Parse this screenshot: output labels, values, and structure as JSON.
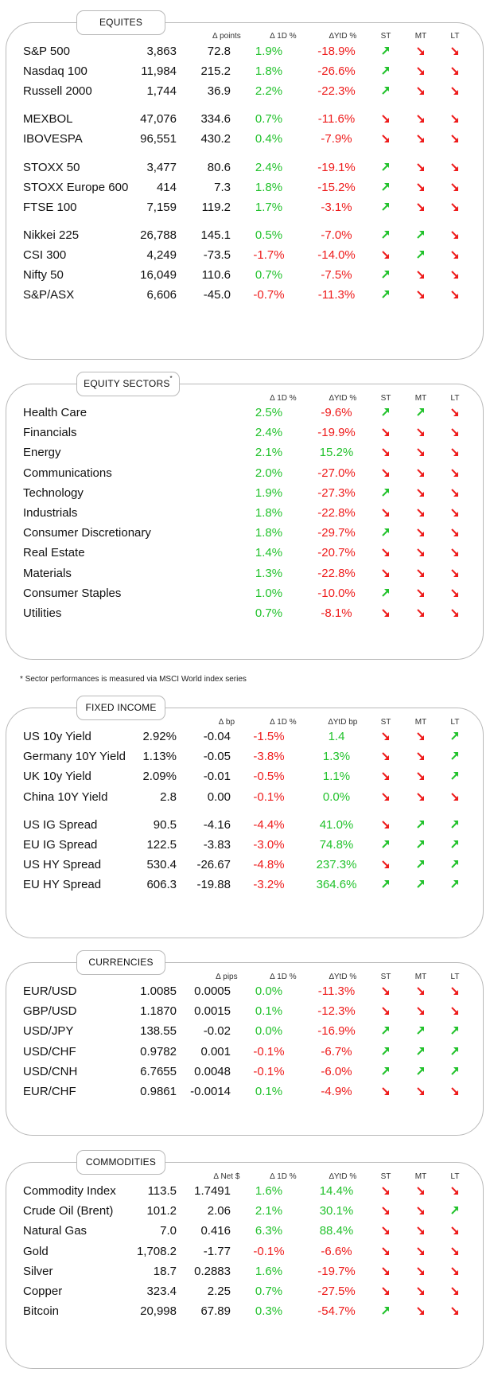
{
  "colors": {
    "positive": "#22c22c",
    "negative": "#ee1b1b",
    "border": "#b9b9b9"
  },
  "equities": {
    "title": "EQUITES",
    "headers": {
      "abs": "∆ points",
      "d1": "∆ 1D %",
      "ytd": "∆YtD %",
      "st": "ST",
      "mt": "MT",
      "lt": "LT"
    },
    "groups": [
      [
        {
          "name": "S&P 500",
          "value": "3,863",
          "abs": "72.8",
          "d1": "1.9%",
          "ytd": "-18.9%",
          "st": "up",
          "mt": "down",
          "lt": "down"
        },
        {
          "name": "Nasdaq 100",
          "value": "11,984",
          "abs": "215.2",
          "d1": "1.8%",
          "ytd": "-26.6%",
          "st": "up",
          "mt": "down",
          "lt": "down"
        },
        {
          "name": "Russell 2000",
          "value": "1,744",
          "abs": "36.9",
          "d1": "2.2%",
          "ytd": "-22.3%",
          "st": "up",
          "mt": "down",
          "lt": "down"
        }
      ],
      [
        {
          "name": "MEXBOL",
          "value": "47,076",
          "abs": "334.6",
          "d1": "0.7%",
          "ytd": "-11.6%",
          "st": "down",
          "mt": "down",
          "lt": "down"
        },
        {
          "name": "IBOVESPA",
          "value": "96,551",
          "abs": "430.2",
          "d1": "0.4%",
          "ytd": "-7.9%",
          "st": "down",
          "mt": "down",
          "lt": "down"
        }
      ],
      [
        {
          "name": "STOXX 50",
          "value": "3,477",
          "abs": "80.6",
          "d1": "2.4%",
          "ytd": "-19.1%",
          "st": "up",
          "mt": "down",
          "lt": "down"
        },
        {
          "name": "STOXX Europe 600",
          "value": "414",
          "abs": "7.3",
          "d1": "1.8%",
          "ytd": "-15.2%",
          "st": "up",
          "mt": "down",
          "lt": "down"
        },
        {
          "name": "FTSE 100",
          "value": "7,159",
          "abs": "119.2",
          "d1": "1.7%",
          "ytd": "-3.1%",
          "st": "up",
          "mt": "down",
          "lt": "down"
        }
      ],
      [
        {
          "name": "Nikkei 225",
          "value": "26,788",
          "abs": "145.1",
          "d1": "0.5%",
          "ytd": "-7.0%",
          "st": "up",
          "mt": "up",
          "lt": "down"
        },
        {
          "name": "CSI 300",
          "value": "4,249",
          "abs": "-73.5",
          "d1": "-1.7%",
          "ytd": "-14.0%",
          "st": "down",
          "mt": "up",
          "lt": "down"
        },
        {
          "name": "Nifty  50",
          "value": "16,049",
          "abs": "110.6",
          "d1": "0.7%",
          "ytd": "-7.5%",
          "st": "up",
          "mt": "down",
          "lt": "down"
        },
        {
          "name": "S&P/ASX",
          "value": "6,606",
          "abs": "-45.0",
          "d1": "-0.7%",
          "ytd": "-11.3%",
          "st": "up",
          "mt": "down",
          "lt": "down"
        }
      ]
    ]
  },
  "sectors": {
    "title": "EQUITY SECTORS",
    "title_mark": "*",
    "headers": {
      "d1": "∆ 1D %",
      "ytd": "∆YtD %",
      "st": "ST",
      "mt": "MT",
      "lt": "LT"
    },
    "rows": [
      {
        "name": "Health Care",
        "d1": "2.5%",
        "ytd": "-9.6%",
        "st": "up",
        "mt": "up",
        "lt": "down"
      },
      {
        "name": "Financials",
        "d1": "2.4%",
        "ytd": "-19.9%",
        "st": "down",
        "mt": "down",
        "lt": "down"
      },
      {
        "name": "Energy",
        "d1": "2.1%",
        "ytd": "15.2%",
        "st": "down",
        "mt": "down",
        "lt": "down"
      },
      {
        "name": "Communications",
        "d1": "2.0%",
        "ytd": "-27.0%",
        "st": "down",
        "mt": "down",
        "lt": "down"
      },
      {
        "name": "Technology",
        "d1": "1.9%",
        "ytd": "-27.3%",
        "st": "up",
        "mt": "down",
        "lt": "down"
      },
      {
        "name": "Industrials",
        "d1": "1.8%",
        "ytd": "-22.8%",
        "st": "down",
        "mt": "down",
        "lt": "down"
      },
      {
        "name": "Consumer Discretionary",
        "d1": "1.8%",
        "ytd": "-29.7%",
        "st": "up",
        "mt": "down",
        "lt": "down"
      },
      {
        "name": "Real Estate",
        "d1": "1.4%",
        "ytd": "-20.7%",
        "st": "down",
        "mt": "down",
        "lt": "down"
      },
      {
        "name": "Materials",
        "d1": "1.3%",
        "ytd": "-22.8%",
        "st": "down",
        "mt": "down",
        "lt": "down"
      },
      {
        "name": "Consumer Staples",
        "d1": "1.0%",
        "ytd": "-10.0%",
        "st": "up",
        "mt": "down",
        "lt": "down"
      },
      {
        "name": "Utilities",
        "d1": "0.7%",
        "ytd": "-8.1%",
        "st": "down",
        "mt": "down",
        "lt": "down"
      }
    ],
    "footnote": "* Sector performances is measured via MSCI World index series"
  },
  "fixed_income": {
    "title": "FIXED INCOME",
    "headers": {
      "abs": "∆ bp",
      "d1": "∆ 1D %",
      "ytd": "∆YtD bp",
      "st": "ST",
      "mt": "MT",
      "lt": "LT"
    },
    "groups": [
      [
        {
          "name": "US 10y Yield",
          "value": "2.92%",
          "abs": "-0.04",
          "d1": "-1.5%",
          "ytd": "1.4",
          "st": "down",
          "mt": "down",
          "lt": "up"
        },
        {
          "name": "Germany 10Y Yield",
          "value": "1.13%",
          "abs": "-0.05",
          "d1": "-3.8%",
          "ytd": "1.3%",
          "st": "down",
          "mt": "down",
          "lt": "up"
        },
        {
          "name": "UK 10y Yield",
          "value": "2.09%",
          "abs": "-0.01",
          "d1": "-0.5%",
          "ytd": "1.1%",
          "st": "down",
          "mt": "down",
          "lt": "up"
        },
        {
          "name": "China 10Y Yield",
          "value": "2.8",
          "abs": "0.00",
          "d1": "-0.1%",
          "ytd": "0.0%",
          "st": "down",
          "mt": "down",
          "lt": "down"
        }
      ],
      [
        {
          "name": "US IG Spread",
          "value": "90.5",
          "abs": "-4.16",
          "d1": "-4.4%",
          "ytd": "41.0%",
          "st": "down",
          "mt": "up",
          "lt": "up"
        },
        {
          "name": "EU IG Spread",
          "value": "122.5",
          "abs": "-3.83",
          "d1": "-3.0%",
          "ytd": "74.8%",
          "st": "up",
          "mt": "up",
          "lt": "up"
        },
        {
          "name": "US HY Spread",
          "value": "530.4",
          "abs": "-26.67",
          "d1": "-4.8%",
          "ytd": "237.3%",
          "st": "down",
          "mt": "up",
          "lt": "up"
        },
        {
          "name": "EU HY Spread",
          "value": "606.3",
          "abs": "-19.88",
          "d1": "-3.2%",
          "ytd": "364.6%",
          "st": "up",
          "mt": "up",
          "lt": "up"
        }
      ]
    ]
  },
  "currencies": {
    "title": "CURRENCIES",
    "headers": {
      "abs": "∆ pips",
      "d1": "∆ 1D %",
      "ytd": "∆YtD %",
      "st": "ST",
      "mt": "MT",
      "lt": "LT"
    },
    "rows": [
      {
        "name": "EUR/USD",
        "value": "1.0085",
        "abs": "0.0005",
        "d1": "0.0%",
        "ytd": "-11.3%",
        "st": "down",
        "mt": "down",
        "lt": "down"
      },
      {
        "name": "GBP/USD",
        "value": "1.1870",
        "abs": "0.0015",
        "d1": "0.1%",
        "ytd": "-12.3%",
        "st": "down",
        "mt": "down",
        "lt": "down"
      },
      {
        "name": "USD/JPY",
        "value": "138.55",
        "abs": "-0.02",
        "d1": "0.0%",
        "ytd": "-16.9%",
        "st": "up",
        "mt": "up",
        "lt": "up"
      },
      {
        "name": "USD/CHF",
        "value": "0.9782",
        "abs": "0.001",
        "d1": "-0.1%",
        "ytd": "-6.7%",
        "st": "up",
        "mt": "up",
        "lt": "up"
      },
      {
        "name": "USD/CNH",
        "value": "6.7655",
        "abs": "0.0048",
        "d1": "-0.1%",
        "ytd": "-6.0%",
        "st": "up",
        "mt": "up",
        "lt": "up"
      },
      {
        "name": "EUR/CHF",
        "value": "0.9861",
        "abs": "-0.0014",
        "d1": "0.1%",
        "ytd": "-4.9%",
        "st": "down",
        "mt": "down",
        "lt": "down"
      }
    ]
  },
  "commodities": {
    "title": "COMMODITIES",
    "headers": {
      "abs": "∆ Net $",
      "d1": "∆ 1D %",
      "ytd": "∆YtD %",
      "st": "ST",
      "mt": "MT",
      "lt": "LT"
    },
    "rows": [
      {
        "name": "Commodity Index",
        "value": "113.5",
        "abs": "1.7491",
        "d1": "1.6%",
        "ytd": "14.4%",
        "st": "down",
        "mt": "down",
        "lt": "down"
      },
      {
        "name": "Crude Oil (Brent)",
        "value": "101.2",
        "abs": "2.06",
        "d1": "2.1%",
        "ytd": "30.1%",
        "st": "down",
        "mt": "down",
        "lt": "up"
      },
      {
        "name": "Natural Gas",
        "value": "7.0",
        "abs": "0.416",
        "d1": "6.3%",
        "ytd": "88.4%",
        "st": "down",
        "mt": "down",
        "lt": "down"
      },
      {
        "name": "Gold",
        "value": "1,708.2",
        "abs": "-1.77",
        "d1": "-0.1%",
        "ytd": "-6.6%",
        "st": "down",
        "mt": "down",
        "lt": "down"
      },
      {
        "name": "Silver",
        "value": "18.7",
        "abs": "0.2883",
        "d1": "1.6%",
        "ytd": "-19.7%",
        "st": "down",
        "mt": "down",
        "lt": "down"
      },
      {
        "name": "Copper",
        "value": "323.4",
        "abs": "2.25",
        "d1": "0.7%",
        "ytd": "-27.5%",
        "st": "down",
        "mt": "down",
        "lt": "down"
      },
      {
        "name": "Bitcoin",
        "value": "20,998",
        "abs": "67.89",
        "d1": "0.3%",
        "ytd": "-54.7%",
        "st": "up",
        "mt": "down",
        "lt": "down"
      }
    ]
  }
}
